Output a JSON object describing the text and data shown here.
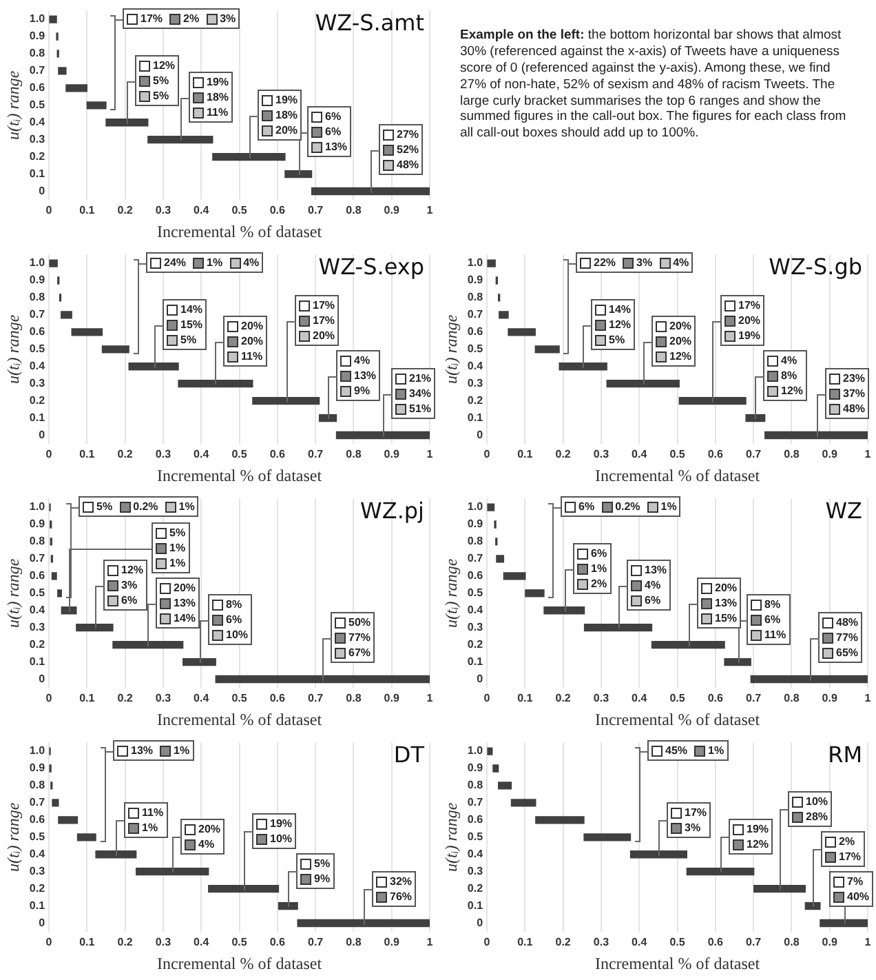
{
  "chart_data": [
    {
      "type": "bar",
      "orientation": "horizontal",
      "title": "WZ-S.amt",
      "xlabel": "Incremental % of dataset",
      "ylabel": "u(tᵢ) range",
      "categories": [
        "1.0",
        "0.9",
        "0.8",
        "0.7",
        "0.6",
        "0.5",
        "0.4",
        "0.3",
        "0.2",
        "0.1",
        "0"
      ],
      "base": [
        0,
        0.02,
        0.022,
        0.025,
        0.045,
        0.1,
        0.15,
        0.26,
        0.43,
        0.62,
        0.69
      ],
      "values": [
        0.02,
        0.002,
        0.002,
        0.02,
        0.055,
        0.05,
        0.11,
        0.17,
        0.19,
        0.07,
        0.31
      ],
      "color": "#404040",
      "xlim": [
        0,
        1
      ],
      "xticks": [
        0,
        0.1,
        0.2,
        0.3,
        0.4,
        0.5,
        0.6,
        0.7,
        0.8,
        0.9,
        1
      ],
      "grid": "x",
      "annotations": [
        "17%",
        "2%",
        "3%",
        "12%",
        "5%",
        "5%",
        "19%",
        "18%",
        "11%",
        "19%",
        "18%",
        "20%",
        "6%",
        "6%",
        "13%",
        "27%",
        "52%",
        "48%"
      ]
    },
    {
      "type": "other",
      "annotations": [
        "Example on the left:",
        "the bottom horizontal bar shows that almost 30% (referenced against the x-axis) of Tweets have a uniqueness score of 0 (referenced against the y-axis). Among these, we find 27% of non-hate, 52% of sexism and 48% of racism Tweets. The large curly bracket summarises the top 6 ranges and show the summed figures in the call-out box. The figures for each class from all call-out boxes should add up to 100%."
      ]
    },
    {
      "type": "bar",
      "orientation": "horizontal",
      "title": "WZ-S.exp",
      "xlabel": "Incremental % of dataset",
      "ylabel": "u(tᵢ) range",
      "categories": [
        "1.0",
        "0.9",
        "0.8",
        "0.7",
        "0.6",
        "0.5",
        "0.4",
        "0.3",
        "0.2",
        "0.1",
        "0"
      ],
      "base": [
        0,
        0.023,
        0.028,
        0.032,
        0.06,
        0.14,
        0.21,
        0.34,
        0.535,
        0.71,
        0.755
      ],
      "values": [
        0.022,
        0.002,
        0.002,
        0.028,
        0.08,
        0.07,
        0.13,
        0.195,
        0.175,
        0.045,
        0.245
      ],
      "color": "#404040",
      "xlim": [
        0,
        1
      ],
      "xticks": [
        0,
        0.1,
        0.2,
        0.3,
        0.4,
        0.5,
        0.6,
        0.7,
        0.8,
        0.9,
        1
      ],
      "grid": "x",
      "annotations": [
        "24%",
        "1%",
        "4%",
        "14%",
        "15%",
        "5%",
        "20%",
        "20%",
        "11%",
        "17%",
        "17%",
        "20%",
        "4%",
        "13%",
        "9%",
        "21%",
        "34%",
        "51%"
      ]
    },
    {
      "type": "bar",
      "orientation": "horizontal",
      "title": "WZ-S.gb",
      "xlabel": "Incremental % of dataset",
      "ylabel": "u(tᵢ) range",
      "categories": [
        "1.0",
        "0.9",
        "0.8",
        "0.7",
        "0.6",
        "0.5",
        "0.4",
        "0.3",
        "0.2",
        "0.1",
        "0"
      ],
      "base": [
        0,
        0.024,
        0.03,
        0.032,
        0.056,
        0.127,
        0.19,
        0.315,
        0.505,
        0.68,
        0.73
      ],
      "values": [
        0.022,
        0.002,
        0.002,
        0.024,
        0.071,
        0.063,
        0.125,
        0.19,
        0.175,
        0.05,
        0.27
      ],
      "color": "#404040",
      "xlim": [
        0,
        1
      ],
      "xticks": [
        0,
        0.1,
        0.2,
        0.3,
        0.4,
        0.5,
        0.6,
        0.7,
        0.8,
        0.9,
        1
      ],
      "grid": "x",
      "annotations": [
        "22%",
        "3%",
        "4%",
        "14%",
        "12%",
        "5%",
        "20%",
        "20%",
        "12%",
        "17%",
        "20%",
        "19%",
        "4%",
        "8%",
        "12%",
        "23%",
        "37%",
        "48%"
      ]
    },
    {
      "type": "bar",
      "orientation": "horizontal",
      "title": "WZ.pj",
      "xlabel": "Incremental % of dataset",
      "ylabel": "u(tᵢ) range",
      "categories": [
        "1.0",
        "0.9",
        "0.8",
        "0.7",
        "0.6",
        "0.5",
        "0.4",
        "0.3",
        "0.2",
        "0.1",
        "0"
      ],
      "base": [
        0,
        0.003,
        0.004,
        0.006,
        0.008,
        0.023,
        0.033,
        0.072,
        0.168,
        0.352,
        0.438
      ],
      "values": [
        0.002,
        0.002,
        0.002,
        0.003,
        0.012,
        0.01,
        0.039,
        0.096,
        0.184,
        0.086,
        0.562
      ],
      "color": "#404040",
      "xlim": [
        0,
        1
      ],
      "xticks": [
        0,
        0.1,
        0.2,
        0.3,
        0.4,
        0.5,
        0.6,
        0.7,
        0.8,
        0.9,
        1
      ],
      "grid": "x",
      "annotations": [
        "5%",
        "0.2%",
        "1%",
        "5%",
        "1%",
        "1%",
        "12%",
        "3%",
        "6%",
        "20%",
        "13%",
        "14%",
        "8%",
        "6%",
        "10%",
        "50%",
        "77%",
        "67%"
      ]
    },
    {
      "type": "bar",
      "orientation": "horizontal",
      "title": "WZ",
      "xlabel": "Incremental % of dataset",
      "ylabel": "u(tᵢ) range",
      "categories": [
        "1.0",
        "0.9",
        "0.8",
        "0.7",
        "0.6",
        "0.5",
        "0.4",
        "0.3",
        "0.2",
        "0.1",
        "0"
      ],
      "base": [
        0,
        0.02,
        0.023,
        0.025,
        0.044,
        0.101,
        0.15,
        0.256,
        0.433,
        0.624,
        0.693
      ],
      "values": [
        0.019,
        0.002,
        0.002,
        0.019,
        0.057,
        0.049,
        0.106,
        0.177,
        0.191,
        0.069,
        0.307
      ],
      "color": "#404040",
      "xlim": [
        0,
        1
      ],
      "xticks": [
        0,
        0.1,
        0.2,
        0.3,
        0.4,
        0.5,
        0.6,
        0.7,
        0.8,
        0.9,
        1
      ],
      "grid": "x",
      "annotations": [
        "6%",
        "0.2%",
        "1%",
        "6%",
        "1%",
        "2%",
        "13%",
        "4%",
        "6%",
        "20%",
        "13%",
        "15%",
        "8%",
        "6%",
        "11%",
        "48%",
        "77%",
        "65%"
      ]
    },
    {
      "type": "bar",
      "orientation": "horizontal",
      "title": "DT",
      "xlabel": "Incremental % of dataset",
      "ylabel": "u(tᵢ) range",
      "categories": [
        "1.0",
        "0.9",
        "0.8",
        "0.7",
        "0.6",
        "0.5",
        "0.4",
        "0.3",
        "0.2",
        "0.1",
        "0"
      ],
      "base": [
        0,
        0.002,
        0.005,
        0.009,
        0.025,
        0.075,
        0.123,
        0.229,
        0.419,
        0.603,
        0.653
      ],
      "values": [
        0.002,
        0.002,
        0.002,
        0.016,
        0.05,
        0.048,
        0.106,
        0.19,
        0.184,
        0.05,
        0.347
      ],
      "color": "#404040",
      "xlim": [
        0,
        1
      ],
      "xticks": [
        0,
        0.1,
        0.2,
        0.3,
        0.4,
        0.5,
        0.6,
        0.7,
        0.8,
        0.9,
        1
      ],
      "grid": "x",
      "annotations": [
        "13%",
        "1%",
        "11%",
        "1%",
        "20%",
        "4%",
        "19%",
        "10%",
        "5%",
        "9%",
        "32%",
        "76%"
      ]
    },
    {
      "type": "bar",
      "orientation": "horizontal",
      "title": "RM",
      "xlabel": "Incremental % of dataset",
      "ylabel": "u(tᵢ) range",
      "categories": [
        "1.0",
        "0.9",
        "0.8",
        "0.7",
        "0.6",
        "0.5",
        "0.4",
        "0.3",
        "0.2",
        "0.1",
        "0"
      ],
      "base": [
        0,
        0.016,
        0.03,
        0.064,
        0.128,
        0.255,
        0.377,
        0.525,
        0.701,
        0.836,
        0.875
      ],
      "values": [
        0.014,
        0.014,
        0.034,
        0.064,
        0.127,
        0.122,
        0.148,
        0.176,
        0.135,
        0.039,
        0.125
      ],
      "color": "#404040",
      "xlim": [
        0,
        1
      ],
      "xticks": [
        0,
        0.1,
        0.2,
        0.3,
        0.4,
        0.5,
        0.6,
        0.7,
        0.8,
        0.9,
        1
      ],
      "grid": "x",
      "annotations": [
        "45%",
        "1%",
        "17%",
        "3%",
        "19%",
        "12%",
        "10%",
        "28%",
        "2%",
        "17%",
        "7%",
        "40%"
      ]
    }
  ]
}
